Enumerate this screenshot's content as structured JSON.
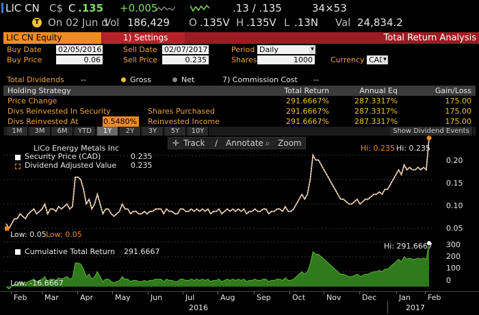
{
  "ticker": {
    "symbol": "LIC CN",
    "currency": "C$",
    "arrow_state": "C",
    "last": ".135",
    "change": "+0.005",
    "bid_ask": ".13 / .135",
    "size": "34×53",
    "line2_date": "On 02 Jun d",
    "vol_label": "Vol",
    "vol": "186,429",
    "open_label": "O",
    "open": ".135V",
    "high_label": "H",
    "high": ".135V",
    "low_label": "L",
    "low": ".13N",
    "val_label": "Val",
    "val": "24,834.2"
  },
  "header": {
    "security": "LIC CN Equity",
    "settings": "1) Settings",
    "title": "Total Return Analysis"
  },
  "form": {
    "buy_date_label": "Buy Date",
    "buy_date": "02/05/2016",
    "sell_date_label": "Sell Date",
    "sell_date": "02/07/2017",
    "period_label": "Period",
    "period": "Daily",
    "buy_price_label": "Buy Price",
    "buy_price": "0.06",
    "sell_price_label": "Sell Price",
    "sell_price": "0.235",
    "shares_label": "Shares",
    "shares": "1000",
    "currency_label": "Currency",
    "currency": "CAD"
  },
  "dividends": {
    "label": "Total Dividends",
    "value": "--",
    "gross": "Gross",
    "net": "Net",
    "commission_label": "7) Commission Cost",
    "commission_value": "--"
  },
  "table": {
    "headers": [
      "Holding Strategy",
      "Total Return",
      "Annual Eq",
      "Gain/Loss"
    ],
    "rows": [
      {
        "label": "Price Change",
        "mid": "",
        "total": "291.6667%",
        "annual": "287.3317%",
        "gain": "175.00"
      },
      {
        "label": "Divs Reinvested In Security",
        "mid": "Shares Purchased",
        "total": "291.6667%",
        "annual": "287.3317%",
        "gain": "175.00"
      },
      {
        "label": "Divs Reinvested At",
        "mid": "Reinvested Income",
        "total": "291.6667%",
        "annual": "287.3317%",
        "gain": "175.00",
        "rate": "0.5480%"
      }
    ]
  },
  "ranges": [
    "1M",
    "3M",
    "6M",
    "YTD",
    "1Y",
    "2Y",
    "3Y",
    "5Y",
    "10Y"
  ],
  "selected_range": "1Y",
  "show_dividend_events": "Show Dividend Events",
  "toolbar": {
    "track": "Track",
    "annotate": "Annotate",
    "zoom": "Zoom"
  },
  "price_legend": {
    "company": "LiCo Energy Metals Inc",
    "series1": "Security Price (CAD)",
    "series1_val": "0.235",
    "series2": "Dividend Adjusted Value",
    "series2_val": "0.235",
    "hi_label1": "Hi: 0.235",
    "hi_label2": "Hi: 0.235",
    "low_label1": "Low: 0.05",
    "low_label2": "Low: 0.05"
  },
  "return_legend": {
    "series": "Cumulative Total Return",
    "series_val": "291.6667",
    "hi_label": "Hi: 291.6667",
    "low_label": "Low: -16.6667"
  },
  "colors": {
    "orange": "#f08a24",
    "green": "#2f7a1c",
    "red": "#9b1c21",
    "accent": "#f2c230"
  },
  "chart_data": [
    {
      "type": "line",
      "ylim": [
        0.03,
        0.24
      ],
      "yticks": [
        "0.20",
        "0.15",
        "0.10",
        "0.05"
      ],
      "series": [
        {
          "name": "Security Price (CAD)",
          "values": [
            0.06,
            0.05,
            0.06,
            0.07,
            0.07,
            0.08,
            0.075,
            0.07,
            0.08,
            0.085,
            0.09,
            0.08,
            0.085,
            0.09,
            0.1,
            0.08,
            0.09,
            0.09,
            0.085,
            0.095,
            0.09,
            0.095,
            0.1,
            0.09,
            0.095,
            0.155,
            0.155,
            0.15,
            0.13,
            0.1,
            0.11,
            0.09,
            0.1,
            0.12,
            0.1,
            0.08,
            0.09,
            0.09,
            0.08,
            0.075,
            0.08,
            0.085,
            0.1,
            0.09,
            0.09,
            0.08,
            0.085,
            0.085,
            0.08,
            0.08,
            0.085,
            0.08,
            0.085,
            0.085,
            0.09,
            0.09,
            0.09,
            0.08,
            0.09,
            0.085,
            0.085,
            0.08,
            0.08,
            0.09,
            0.09,
            0.085,
            0.085,
            0.09,
            0.085,
            0.09,
            0.085,
            0.09,
            0.085,
            0.09,
            0.08,
            0.085,
            0.085,
            0.09,
            0.08,
            0.085,
            0.09,
            0.085,
            0.09,
            0.085,
            0.09,
            0.085,
            0.09,
            0.08,
            0.085,
            0.085,
            0.09,
            0.085,
            0.085,
            0.09,
            0.09,
            0.08,
            0.085,
            0.085,
            0.09,
            0.09,
            0.085,
            0.095,
            0.085,
            0.085,
            0.09,
            0.1,
            0.11,
            0.12,
            0.11,
            0.12,
            0.15,
            0.2,
            0.19,
            0.19,
            0.18,
            0.17,
            0.16,
            0.15,
            0.14,
            0.13,
            0.12,
            0.11,
            0.11,
            0.105,
            0.1,
            0.1,
            0.105,
            0.11,
            0.1,
            0.105,
            0.11,
            0.11,
            0.115,
            0.12,
            0.12,
            0.125,
            0.12,
            0.13,
            0.13,
            0.14,
            0.15,
            0.16,
            0.17,
            0.16,
            0.18,
            0.17,
            0.175,
            0.17,
            0.17,
            0.175,
            0.17,
            0.175,
            0.17,
            0.235
          ]
        }
      ]
    },
    {
      "type": "area",
      "ylim": [
        -30,
        310
      ],
      "yticks": [
        "300",
        "200",
        "100",
        "0"
      ],
      "series": [
        {
          "name": "Cumulative Total Return",
          "values": [
            0,
            -16.7,
            0,
            16.7,
            16.7,
            33.3,
            25,
            16.7,
            33.3,
            41.7,
            50,
            33.3,
            41.7,
            50,
            66.7,
            33.3,
            50,
            50,
            41.7,
            58.3,
            50,
            58.3,
            66.7,
            50,
            58.3,
            158.3,
            158.3,
            150,
            116.7,
            66.7,
            83.3,
            50,
            66.7,
            100,
            66.7,
            33.3,
            50,
            50,
            33.3,
            25,
            33.3,
            41.7,
            66.7,
            50,
            50,
            33.3,
            41.7,
            41.7,
            33.3,
            33.3,
            41.7,
            33.3,
            41.7,
            41.7,
            50,
            50,
            50,
            33.3,
            50,
            41.7,
            41.7,
            33.3,
            33.3,
            50,
            50,
            41.7,
            41.7,
            50,
            41.7,
            50,
            41.7,
            50,
            41.7,
            50,
            33.3,
            41.7,
            41.7,
            50,
            33.3,
            41.7,
            50,
            41.7,
            50,
            41.7,
            50,
            41.7,
            50,
            33.3,
            41.7,
            41.7,
            50,
            41.7,
            41.7,
            50,
            50,
            33.3,
            41.7,
            41.7,
            50,
            50,
            41.7,
            58.3,
            41.7,
            41.7,
            50,
            66.7,
            83.3,
            100,
            83.3,
            100,
            150,
            233.3,
            216.7,
            216.7,
            200,
            183.3,
            166.7,
            150,
            133.3,
            116.7,
            100,
            83.3,
            83.3,
            75,
            66.7,
            66.7,
            75,
            83.3,
            66.7,
            75,
            83.3,
            83.3,
            91.7,
            100,
            100,
            108.3,
            100,
            116.7,
            116.7,
            133.3,
            150,
            166.7,
            183.3,
            166.7,
            200,
            183.3,
            191.7,
            183.3,
            183.3,
            191.7,
            183.3,
            191.7,
            183.3,
            291.7
          ]
        }
      ]
    }
  ],
  "xaxis": {
    "months": [
      "Feb",
      "Mar",
      "Apr",
      "May",
      "Jun",
      "Jul",
      "Aug",
      "Sep",
      "Oct",
      "Nov",
      "Dec",
      "Jan",
      "Feb"
    ],
    "years": [
      "2016",
      "2017"
    ]
  }
}
